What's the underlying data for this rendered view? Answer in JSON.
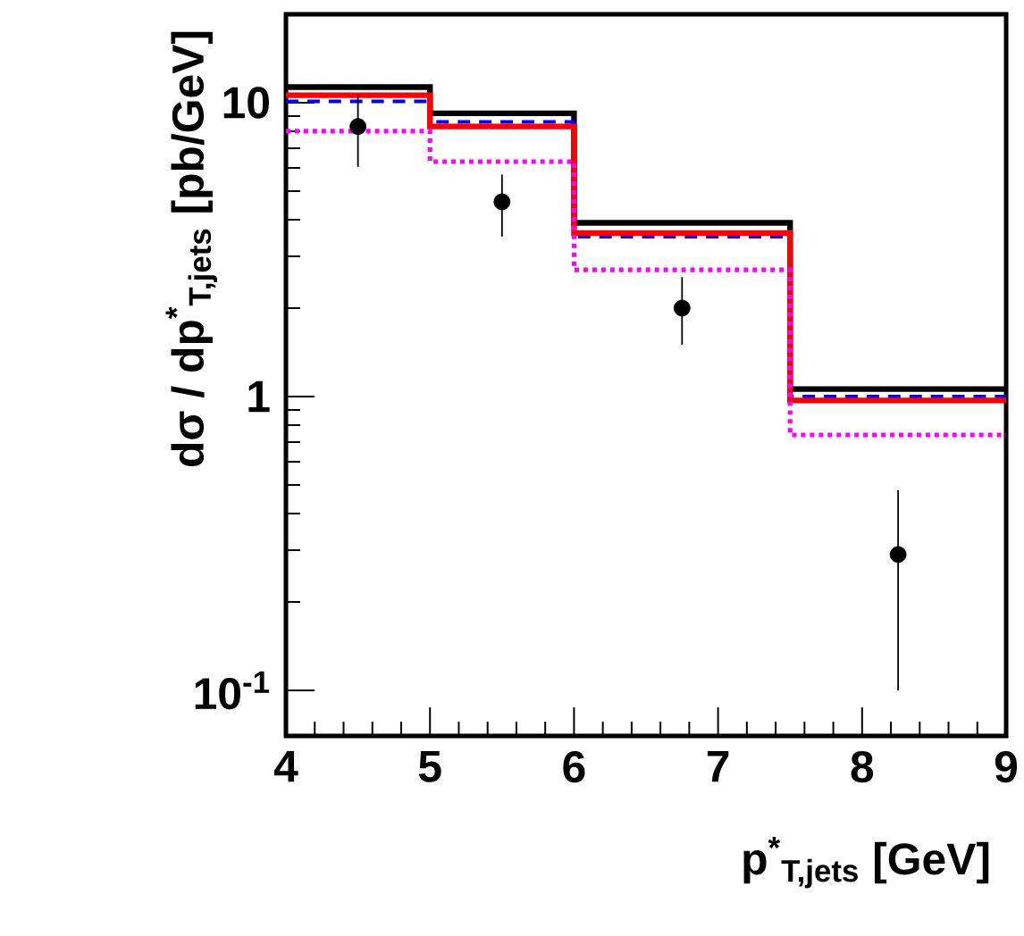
{
  "chart_data": {
    "type": "histogram",
    "xlabel": "p$^{*}$$_{T,jets}$  [GeV]",
    "ylabel": "dσ / dp$^{*}$$_{T,jets}$   [pb/GeV]",
    "bins": [
      4,
      5,
      6,
      7.5,
      9
    ],
    "series": [
      {
        "color": "#000000",
        "line_style": "solid",
        "values": [
          11.3,
          9.2,
          3.9,
          1.06
        ]
      },
      {
        "color": "#0000ff",
        "line_style": "dashed",
        "values": [
          10.1,
          8.6,
          3.5,
          1.0
        ]
      },
      {
        "color": "#ff0000",
        "line_style": "solid",
        "values": [
          10.6,
          8.3,
          3.6,
          0.97
        ]
      },
      {
        "color": "#ff00ff",
        "line_style": "dotted",
        "values": [
          8.0,
          6.3,
          2.7,
          0.74
        ]
      },
      {
        "type": "scatter",
        "color": "#000000",
        "marker": "circle",
        "x": [
          4.5,
          5.5,
          6.75,
          8.25
        ],
        "values": [
          8.3,
          4.6,
          2.0,
          0.29
        ],
        "errors": [
          [
            6.05,
            10.6
          ],
          [
            3.5,
            5.7
          ],
          [
            1.5,
            2.55
          ],
          [
            0.1,
            0.48
          ]
        ]
      }
    ],
    "log": "y",
    "xlim": [
      4,
      9
    ],
    "ylim": [
      0.07,
      20
    ],
    "xticks": [
      4,
      5,
      6,
      7,
      8,
      9
    ],
    "yticks": [
      {
        "value": 0.1,
        "label": "10$^{-1}$"
      },
      1,
      10
    ],
    "grid": false
  }
}
